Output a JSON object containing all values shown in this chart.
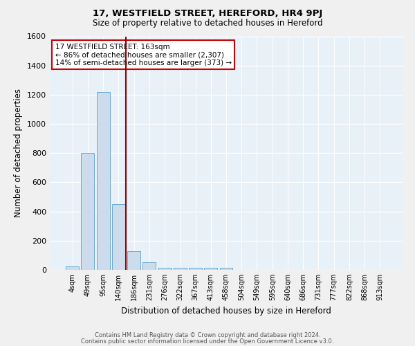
{
  "title1": "17, WESTFIELD STREET, HEREFORD, HR4 9PJ",
  "title2": "Size of property relative to detached houses in Hereford",
  "xlabel": "Distribution of detached houses by size in Hereford",
  "ylabel": "Number of detached properties",
  "footnote1": "Contains HM Land Registry data © Crown copyright and database right 2024.",
  "footnote2": "Contains public sector information licensed under the Open Government Licence v3.0.",
  "bar_labels": [
    "4sqm",
    "49sqm",
    "95sqm",
    "140sqm",
    "186sqm",
    "231sqm",
    "276sqm",
    "322sqm",
    "367sqm",
    "413sqm",
    "458sqm",
    "504sqm",
    "549sqm",
    "595sqm",
    "640sqm",
    "686sqm",
    "731sqm",
    "777sqm",
    "822sqm",
    "868sqm",
    "913sqm"
  ],
  "bar_values": [
    22,
    800,
    1220,
    450,
    130,
    52,
    16,
    14,
    14,
    14,
    14,
    0,
    0,
    0,
    0,
    0,
    0,
    0,
    0,
    0,
    0
  ],
  "bar_color": "#ccdcec",
  "bar_edge_color": "#6aaad4",
  "background_color": "#e8f0f8",
  "grid_color": "#ffffff",
  "vline_x": 3.5,
  "vline_color": "#8b0000",
  "ylim": [
    0,
    1600
  ],
  "yticks": [
    0,
    200,
    400,
    600,
    800,
    1000,
    1200,
    1400,
    1600
  ],
  "annotation_text": "17 WESTFIELD STREET: 163sqm\n← 86% of detached houses are smaller (2,307)\n14% of semi-detached houses are larger (373) →",
  "annotation_box_color": "#ffffff",
  "annotation_box_edge": "#cc0000",
  "fig_width": 6.0,
  "fig_height": 5.0,
  "dpi": 100
}
